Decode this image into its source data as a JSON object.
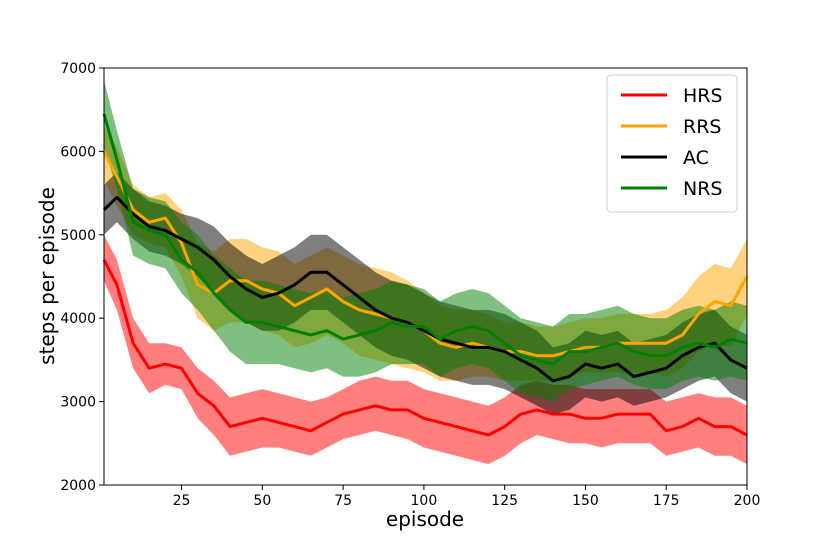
{
  "chart_data": {
    "type": "line",
    "xlabel": "episode",
    "ylabel": "steps per episode",
    "xlim": [
      1,
      200
    ],
    "ylim": [
      2000,
      7000
    ],
    "xticks": [
      25,
      50,
      75,
      100,
      125,
      150,
      175,
      200
    ],
    "yticks": [
      2000,
      3000,
      4000,
      5000,
      6000,
      7000
    ],
    "legend_position": "top-right",
    "x": [
      1,
      5,
      10,
      15,
      20,
      25,
      30,
      35,
      40,
      45,
      50,
      55,
      60,
      65,
      70,
      75,
      80,
      85,
      90,
      95,
      100,
      105,
      110,
      115,
      120,
      125,
      130,
      135,
      140,
      145,
      150,
      155,
      160,
      165,
      170,
      175,
      180,
      185,
      190,
      195,
      200
    ],
    "series": [
      {
        "name": "HRS",
        "color": "#ff0000",
        "mean": [
          4700,
          4400,
          3700,
          3400,
          3450,
          3400,
          3100,
          2950,
          2700,
          2750,
          2800,
          2750,
          2700,
          2650,
          2750,
          2850,
          2900,
          2950,
          2900,
          2900,
          2800,
          2750,
          2700,
          2650,
          2600,
          2700,
          2850,
          2900,
          2850,
          2850,
          2800,
          2800,
          2850,
          2850,
          2850,
          2650,
          2700,
          2800,
          2700,
          2700,
          2600
        ],
        "lower": [
          4450,
          4100,
          3400,
          3100,
          3200,
          3150,
          2800,
          2600,
          2350,
          2400,
          2450,
          2450,
          2400,
          2350,
          2450,
          2550,
          2600,
          2650,
          2600,
          2550,
          2450,
          2400,
          2350,
          2300,
          2250,
          2350,
          2500,
          2600,
          2550,
          2500,
          2500,
          2450,
          2500,
          2500,
          2500,
          2350,
          2400,
          2450,
          2350,
          2350,
          2250
        ],
        "upper": [
          5000,
          4700,
          4000,
          3700,
          3700,
          3650,
          3400,
          3250,
          3050,
          3100,
          3150,
          3100,
          3050,
          3000,
          3050,
          3150,
          3250,
          3300,
          3250,
          3250,
          3150,
          3100,
          3050,
          3000,
          2950,
          3050,
          3200,
          3250,
          3200,
          3200,
          3150,
          3150,
          3150,
          3150,
          3150,
          3000,
          3050,
          3100,
          3050,
          3050,
          2950
        ]
      },
      {
        "name": "RRS",
        "color": "#ffa500",
        "mean": [
          6000,
          5700,
          5300,
          5150,
          5200,
          4900,
          4400,
          4300,
          4450,
          4450,
          4350,
          4300,
          4150,
          4250,
          4350,
          4200,
          4100,
          4050,
          4000,
          3950,
          3850,
          3700,
          3650,
          3700,
          3650,
          3600,
          3600,
          3550,
          3550,
          3600,
          3650,
          3650,
          3700,
          3700,
          3700,
          3700,
          3800,
          4050,
          4200,
          4150,
          4500
        ],
        "lower": [
          5650,
          5350,
          5000,
          4900,
          4850,
          4500,
          4000,
          3850,
          3950,
          3950,
          3850,
          3800,
          3650,
          3700,
          3800,
          3700,
          3550,
          3500,
          3450,
          3400,
          3350,
          3250,
          3250,
          3300,
          3300,
          3250,
          3250,
          3250,
          3250,
          3300,
          3350,
          3350,
          3350,
          3350,
          3350,
          3300,
          3400,
          3600,
          3700,
          3650,
          4050
        ],
        "upper": [
          6300,
          6050,
          5600,
          5450,
          5500,
          5300,
          4900,
          4800,
          4950,
          4950,
          4850,
          4800,
          4650,
          4750,
          4850,
          4750,
          4650,
          4600,
          4550,
          4450,
          4300,
          4150,
          4100,
          4100,
          4050,
          3950,
          3950,
          3900,
          3900,
          3950,
          4000,
          4000,
          4050,
          4050,
          4050,
          4100,
          4250,
          4500,
          4650,
          4600,
          4950
        ]
      },
      {
        "name": "AC",
        "color": "#000000",
        "mean": [
          5300,
          5450,
          5250,
          5100,
          5050,
          4950,
          4850,
          4700,
          4500,
          4350,
          4250,
          4300,
          4400,
          4550,
          4550,
          4400,
          4250,
          4100,
          4000,
          3950,
          3850,
          3750,
          3700,
          3650,
          3650,
          3600,
          3500,
          3400,
          3250,
          3300,
          3450,
          3400,
          3450,
          3300,
          3350,
          3400,
          3550,
          3650,
          3700,
          3500,
          3400
        ],
        "lower": [
          5000,
          5150,
          4950,
          4800,
          4750,
          4650,
          4500,
          4300,
          4100,
          3950,
          3850,
          3850,
          3950,
          4100,
          4100,
          3950,
          3800,
          3650,
          3550,
          3500,
          3400,
          3300,
          3250,
          3200,
          3200,
          3150,
          3050,
          2950,
          2850,
          2900,
          3050,
          3000,
          3050,
          2950,
          3000,
          3050,
          3150,
          3250,
          3300,
          3100,
          3000
        ],
        "upper": [
          5600,
          5750,
          5550,
          5400,
          5350,
          5250,
          5200,
          5100,
          4900,
          4750,
          4650,
          4750,
          4850,
          5000,
          5000,
          4850,
          4700,
          4550,
          4450,
          4400,
          4300,
          4200,
          4150,
          4100,
          4100,
          4050,
          3950,
          3850,
          3650,
          3700,
          3850,
          3800,
          3850,
          3700,
          3750,
          3800,
          3950,
          4050,
          4100,
          3900,
          3800
        ]
      },
      {
        "name": "NRS",
        "color": "#008000",
        "mean": [
          6450,
          5900,
          5150,
          5050,
          5000,
          4700,
          4550,
          4300,
          4100,
          3950,
          3950,
          3900,
          3850,
          3800,
          3850,
          3750,
          3800,
          3850,
          3950,
          3900,
          3900,
          3750,
          3850,
          3900,
          3850,
          3700,
          3550,
          3500,
          3450,
          3600,
          3600,
          3650,
          3700,
          3600,
          3550,
          3550,
          3650,
          3700,
          3650,
          3750,
          3700
        ],
        "lower": [
          6050,
          5550,
          4750,
          4650,
          4600,
          4300,
          4100,
          3850,
          3600,
          3450,
          3450,
          3450,
          3400,
          3350,
          3400,
          3300,
          3300,
          3350,
          3450,
          3450,
          3450,
          3300,
          3400,
          3450,
          3400,
          3250,
          3100,
          3050,
          3000,
          3150,
          3200,
          3250,
          3300,
          3200,
          3150,
          3150,
          3250,
          3300,
          3250,
          3300,
          3250
        ],
        "upper": [
          6850,
          6250,
          5550,
          5450,
          5400,
          5150,
          5000,
          4750,
          4600,
          4450,
          4450,
          4400,
          4350,
          4300,
          4350,
          4250,
          4300,
          4350,
          4450,
          4400,
          4350,
          4200,
          4300,
          4350,
          4300,
          4150,
          4000,
          3950,
          3900,
          4050,
          4050,
          4100,
          4150,
          4050,
          4000,
          4000,
          4100,
          4150,
          4100,
          4200,
          4150
        ]
      }
    ]
  }
}
